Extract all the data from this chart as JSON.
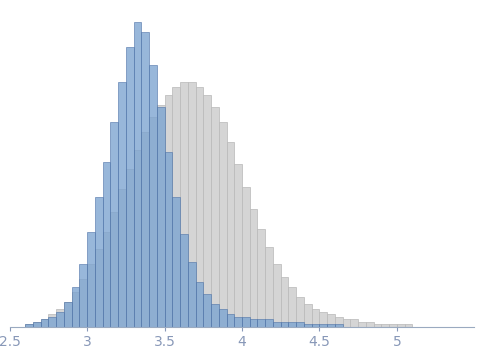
{
  "blue_hist_left": [
    2.6,
    2.65,
    2.7,
    2.75,
    2.8,
    2.85,
    2.9,
    2.95,
    3.0,
    3.05,
    3.1,
    3.15,
    3.2,
    3.25,
    3.3,
    3.35,
    3.4,
    3.45,
    3.5,
    3.55,
    3.6,
    3.65,
    3.7,
    3.75,
    3.8,
    3.85,
    3.9,
    3.95,
    4.0,
    4.05,
    4.1,
    4.15,
    4.2,
    4.25,
    4.3,
    4.35,
    4.4,
    4.45,
    4.5,
    4.55,
    4.6,
    4.65
  ],
  "blue_hist_h": [
    1,
    2,
    3,
    4,
    6,
    10,
    16,
    25,
    38,
    52,
    66,
    82,
    98,
    112,
    122,
    118,
    105,
    88,
    70,
    52,
    37,
    26,
    18,
    13,
    9,
    7,
    5,
    4,
    4,
    3,
    3,
    3,
    2,
    2,
    2,
    2,
    1,
    1,
    1,
    1,
    1,
    0
  ],
  "gray_hist_left": [
    2.6,
    2.65,
    2.7,
    2.75,
    2.8,
    2.85,
    2.9,
    2.95,
    3.0,
    3.05,
    3.1,
    3.15,
    3.2,
    3.25,
    3.3,
    3.35,
    3.4,
    3.45,
    3.5,
    3.55,
    3.6,
    3.65,
    3.7,
    3.75,
    3.8,
    3.85,
    3.9,
    3.95,
    4.0,
    4.05,
    4.1,
    4.15,
    4.2,
    4.25,
    4.3,
    4.35,
    4.4,
    4.45,
    4.5,
    4.55,
    4.6,
    4.65,
    4.7,
    4.75,
    4.8,
    4.85,
    4.9,
    4.95,
    5.0,
    5.05,
    5.1,
    5.15,
    5.2,
    5.25,
    5.3
  ],
  "gray_hist_h": [
    1,
    2,
    3,
    5,
    7,
    10,
    14,
    19,
    25,
    31,
    38,
    46,
    55,
    63,
    71,
    78,
    84,
    89,
    93,
    96,
    98,
    98,
    96,
    93,
    88,
    82,
    74,
    65,
    56,
    47,
    39,
    32,
    25,
    20,
    16,
    12,
    9,
    7,
    6,
    5,
    4,
    3,
    3,
    2,
    2,
    1,
    1,
    1,
    1,
    1,
    0,
    0,
    0,
    0,
    0
  ],
  "bin_width": 0.05,
  "xlim": [
    2.5,
    5.5
  ],
  "ylim": [
    0,
    128
  ],
  "xticks": [
    2.5,
    3.0,
    3.5,
    4.0,
    4.5,
    5.0
  ],
  "xtick_labels": [
    "2.5",
    "3",
    "3.5",
    "4",
    "4.5",
    "5"
  ],
  "blue_face": "#7ba3d0",
  "blue_edge": "#4a6fa5",
  "gray_face": "#d5d5d5",
  "gray_edge": "#b8b8b8",
  "axis_color": "#9aaac0",
  "tick_color": "#8898b8",
  "bg_color": "#ffffff"
}
